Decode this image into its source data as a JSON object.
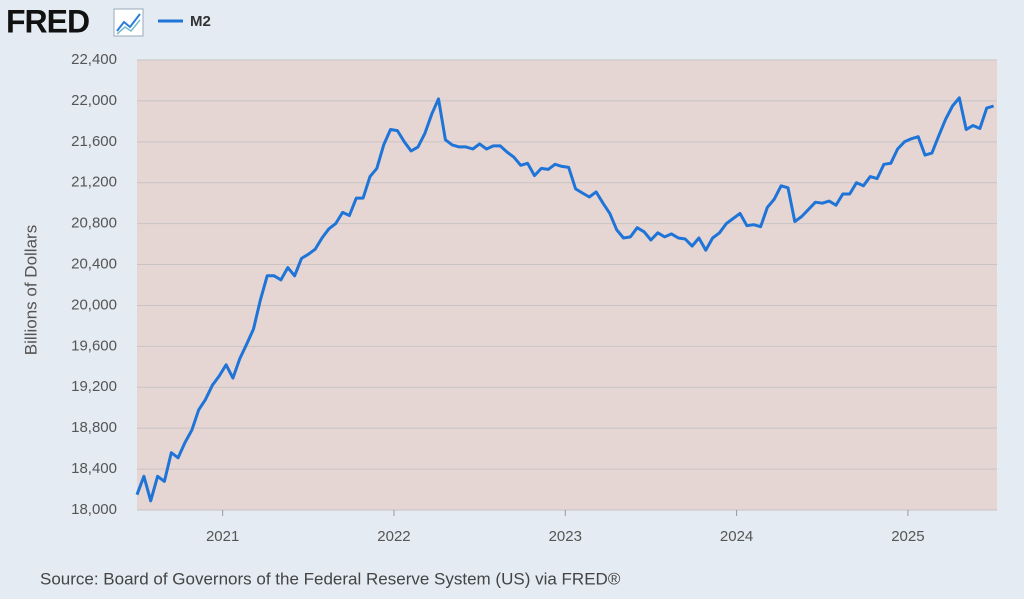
{
  "chart_data": {
    "type": "line",
    "logo": "FRED",
    "source": "Source: Board of Governors of the Federal Reserve System (US) via FRED®",
    "y_label": "Billions of Dollars",
    "x": [
      2020.5,
      2020.54,
      2020.58,
      2020.62,
      2020.66,
      2020.7,
      2020.74,
      2020.78,
      2020.82,
      2020.86,
      2020.9,
      2020.94,
      2020.98,
      2021.02,
      2021.06,
      2021.1,
      2021.14,
      2021.18,
      2021.22,
      2021.26,
      2021.3,
      2021.34,
      2021.38,
      2021.42,
      2021.46,
      2021.5,
      2021.54,
      2021.58,
      2021.62,
      2021.66,
      2021.7,
      2021.74,
      2021.78,
      2021.82,
      2021.86,
      2021.9,
      2021.94,
      2021.98,
      2022.02,
      2022.06,
      2022.1,
      2022.14,
      2022.18,
      2022.22,
      2022.26,
      2022.3,
      2022.34,
      2022.38,
      2022.42,
      2022.46,
      2022.5,
      2022.54,
      2022.58,
      2022.62,
      2022.66,
      2022.7,
      2022.74,
      2022.78,
      2022.82,
      2022.86,
      2022.9,
      2022.94,
      2022.98,
      2023.02,
      2023.06,
      2023.1,
      2023.14,
      2023.18,
      2023.22,
      2023.26,
      2023.3,
      2023.34,
      2023.38,
      2023.42,
      2023.46,
      2023.5,
      2023.54,
      2023.58,
      2023.62,
      2023.66,
      2023.7,
      2023.74,
      2023.78,
      2023.82,
      2023.86,
      2023.9,
      2023.94,
      2023.98,
      2024.02,
      2024.06,
      2024.1,
      2024.14,
      2024.18,
      2024.22,
      2024.26,
      2024.3,
      2024.34,
      2024.38,
      2024.42,
      2024.46,
      2024.5,
      2024.54,
      2024.58,
      2024.62,
      2024.66,
      2024.7,
      2024.74,
      2024.78,
      2024.82,
      2024.86,
      2024.9,
      2024.94,
      2024.98,
      2025.02,
      2025.06,
      2025.1,
      2025.14,
      2025.18,
      2025.22,
      2025.26,
      2025.3,
      2025.34,
      2025.38,
      2025.42,
      2025.46,
      2025.5
    ],
    "series": [
      {
        "name": "M2",
        "color": "#1f74d8",
        "values": [
          18150,
          18330,
          18090,
          18330,
          18280,
          18560,
          18510,
          18660,
          18780,
          18980,
          19080,
          19220,
          19310,
          19420,
          19290,
          19480,
          19620,
          19770,
          20050,
          20290,
          20290,
          20250,
          20370,
          20290,
          20460,
          20500,
          20550,
          20660,
          20750,
          20800,
          20910,
          20880,
          21050,
          21050,
          21260,
          21340,
          21570,
          21720,
          21710,
          21600,
          21510,
          21550,
          21680,
          21870,
          22020,
          21620,
          21570,
          21550,
          21550,
          21530,
          21580,
          21530,
          21560,
          21560,
          21500,
          21450,
          21370,
          21390,
          21270,
          21340,
          21330,
          21380,
          21360,
          21350,
          21140,
          21100,
          21060,
          21110,
          21000,
          20900,
          20740,
          20660,
          20670,
          20760,
          20720,
          20640,
          20710,
          20670,
          20700,
          20660,
          20650,
          20580,
          20660,
          20540,
          20660,
          20710,
          20800,
          20850,
          20900,
          20780,
          20790,
          20770,
          20960,
          21040,
          21170,
          21150,
          20820,
          20870,
          20940,
          21010,
          21000,
          21020,
          20980,
          21090,
          21090,
          21200,
          21170,
          21260,
          21240,
          21380,
          21390,
          21530,
          21600,
          21630,
          21650,
          21470,
          21490,
          21660,
          21820,
          21950,
          22030,
          21720,
          21760,
          21730,
          21930,
          21950
        ]
      }
    ],
    "xlim": [
      2020.5,
      2025.52
    ],
    "xticks": [
      2021,
      2022,
      2023,
      2024,
      2025
    ],
    "ylim": [
      18000,
      22400
    ],
    "yticks": [
      {
        "value": 18000,
        "label": "18,000"
      },
      {
        "value": 18400,
        "label": "18,400"
      },
      {
        "value": 18800,
        "label": "18,800"
      },
      {
        "value": 19200,
        "label": "19,200"
      },
      {
        "value": 19600,
        "label": "19,600"
      },
      {
        "value": 20000,
        "label": "20,000"
      },
      {
        "value": 20400,
        "label": "20,400"
      },
      {
        "value": 20800,
        "label": "20,800"
      },
      {
        "value": 21200,
        "label": "21,200"
      },
      {
        "value": 21600,
        "label": "21,600"
      },
      {
        "value": 22000,
        "label": "22,000"
      },
      {
        "value": 22400,
        "label": "22,400"
      }
    ],
    "grid": true
  }
}
